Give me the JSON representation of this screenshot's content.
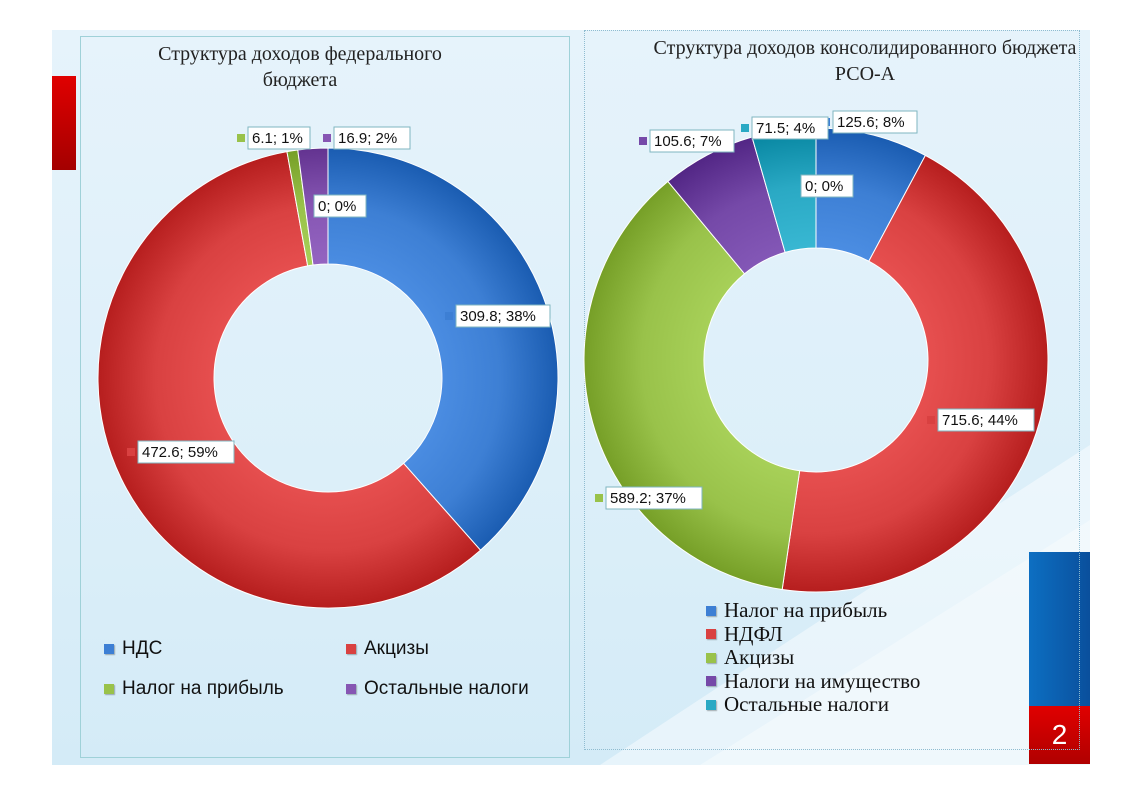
{
  "page_number": "2",
  "chart_data": [
    {
      "type": "pie",
      "title": "Структура доходов федерального бюджета",
      "categories": [
        "НДС",
        "Акцизы",
        "Налог на прибыль",
        "Остальные налоги"
      ],
      "values": [
        309.8,
        472.6,
        6.1,
        16.9
      ],
      "labels": [
        "309.8; 38%",
        "472.6; 59%",
        "6.1; 1%",
        "16.9; 2%"
      ],
      "extra_label": "0; 0%",
      "colors": [
        "#3d7fd4",
        "#d94141",
        "#99c24a",
        "#8656b3"
      ],
      "legend_position": "bottom"
    },
    {
      "type": "pie",
      "title": "Структура доходов консолидированного бюджета РСО-А",
      "categories": [
        "Налог на прибыль",
        "НДФЛ",
        "Акцизы",
        "Налоги на имущество",
        "Остальные налоги"
      ],
      "values": [
        125.6,
        715.6,
        589.2,
        105.6,
        71.5
      ],
      "labels": [
        "125.6; 8%",
        "715.6; 44%",
        "589.2; 37%",
        "105.6; 7%",
        "71.5; 4%"
      ],
      "extra_label": "0; 0%",
      "colors": [
        "#3d7fd4",
        "#d94141",
        "#99c24a",
        "#7549a8",
        "#2aa9c4"
      ],
      "legend_position": "bottom"
    }
  ]
}
